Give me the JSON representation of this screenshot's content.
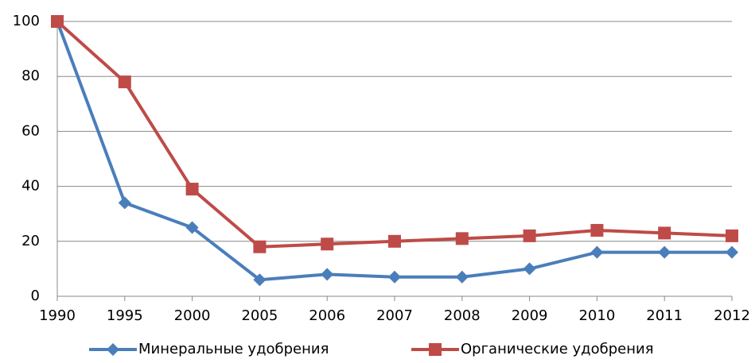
{
  "chart_data": {
    "type": "line",
    "categories": [
      "1990",
      "1995",
      "2000",
      "2005",
      "2006",
      "2007",
      "2008",
      "2009",
      "2010",
      "2011",
      "2012"
    ],
    "series": [
      {
        "name": "Минеральные удобрения",
        "color": "#4a7ebb",
        "marker": "diamond",
        "values": [
          100,
          34,
          25,
          6,
          8,
          7,
          7,
          10,
          16,
          16,
          16
        ]
      },
      {
        "name": "Органические удобрения",
        "color": "#be4b48",
        "marker": "square",
        "values": [
          100,
          78,
          39,
          18,
          19,
          20,
          21,
          22,
          24,
          23,
          22
        ]
      }
    ],
    "ylim": [
      0,
      100
    ],
    "yticks": [
      0,
      20,
      40,
      60,
      80,
      100
    ],
    "grid": true,
    "legend": "bottom"
  }
}
